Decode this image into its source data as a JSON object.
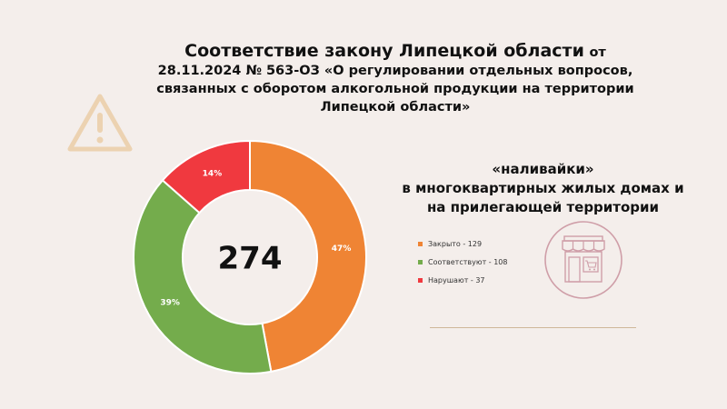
{
  "title": {
    "main": "Соответствие закону Липецкой области",
    "from": "от",
    "line2": "28.11.2024 № 563-ОЗ «О регулировании отдельных вопросов,",
    "line3": "связанных с оборотом алкогольной продукции на территории",
    "line4": "Липецкой области»"
  },
  "subtitle": {
    "line1": "«наливайки»",
    "line2": "в многоквартирных жилых домах и",
    "line3": "на прилегающей территории"
  },
  "icons": {
    "warning": "warning-triangle-icon",
    "shop": "shop-storefront-icon"
  },
  "chart_data": {
    "type": "pie",
    "variant": "donut",
    "center_label": "274",
    "categories": [
      "Закрыто",
      "Соответствуют",
      "Нарушают"
    ],
    "values": [
      129,
      108,
      37
    ],
    "percent_labels": [
      "47%",
      "39%",
      "14%"
    ],
    "legend": [
      "Закрыто - 129",
      "Соответствуют - 108",
      "Нарушают - 37"
    ],
    "colors": [
      "#ef8434",
      "#74ac4c",
      "#f0393f"
    ],
    "legend_position": "right",
    "start": "top, clockwise"
  }
}
